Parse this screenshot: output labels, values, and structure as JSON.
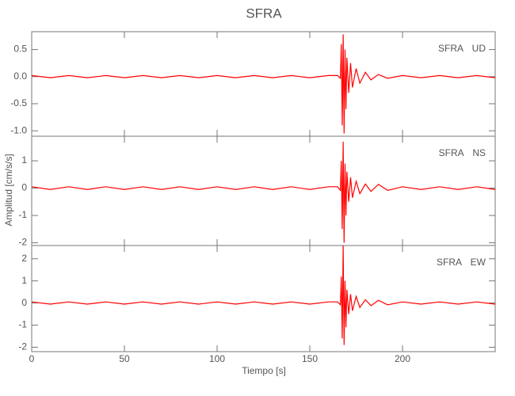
{
  "chart_data": [
    {
      "type": "line",
      "title": "SFRA",
      "annotation": "SFRA UD",
      "x": [
        0,
        10,
        20,
        30,
        40,
        50,
        60,
        70,
        80,
        90,
        100,
        110,
        120,
        130,
        140,
        150,
        160,
        165,
        166.5,
        167,
        167.5,
        168,
        168.5,
        169,
        169.5,
        170,
        171,
        172,
        173,
        175,
        177,
        180,
        183,
        187,
        192,
        200,
        210,
        220,
        230,
        240,
        250
      ],
      "series": [
        {
          "name": "UD",
          "color": "#ff0000",
          "values": [
            0.02,
            -0.02,
            0.02,
            -0.02,
            0.02,
            -0.02,
            0.02,
            -0.02,
            0.02,
            -0.02,
            0.02,
            -0.02,
            0.02,
            -0.02,
            0.02,
            -0.02,
            0.02,
            0.02,
            -0.03,
            0.6,
            -0.9,
            0.78,
            -1.05,
            0.5,
            -0.6,
            0.35,
            -0.3,
            0.25,
            -0.2,
            0.15,
            -0.12,
            0.08,
            -0.06,
            0.04,
            -0.03,
            0.02,
            -0.02,
            0.02,
            -0.02,
            0.02,
            -0.02
          ]
        }
      ],
      "xlim": [
        0,
        250
      ],
      "ylim": [
        -1.1,
        0.83
      ],
      "yticks": [
        0.5,
        {
          "value": 0,
          "label": "0.0"
        },
        -0.5,
        {
          "value": -1,
          "label": "-1.0"
        }
      ]
    },
    {
      "type": "line",
      "ylabel": "Amplitud [cm/s/s]",
      "annotation": "SFRA NS",
      "x": [
        0,
        10,
        20,
        30,
        40,
        50,
        60,
        70,
        80,
        90,
        100,
        110,
        120,
        130,
        140,
        150,
        160,
        165,
        166.5,
        167,
        167.5,
        168,
        168.5,
        169,
        169.5,
        170,
        171,
        172,
        173,
        175,
        177,
        180,
        183,
        187,
        192,
        200,
        210,
        220,
        230,
        240,
        250
      ],
      "series": [
        {
          "name": "NS",
          "color": "#ff0000",
          "values": [
            0.05,
            -0.05,
            0.05,
            -0.05,
            0.05,
            -0.05,
            0.05,
            -0.05,
            0.05,
            -0.05,
            0.05,
            -0.05,
            0.05,
            -0.05,
            0.05,
            -0.05,
            0.05,
            0.05,
            -0.08,
            1.0,
            -1.5,
            1.7,
            -2.0,
            0.9,
            -1.0,
            0.6,
            -0.5,
            0.4,
            -0.35,
            0.25,
            -0.2,
            0.15,
            -0.12,
            0.14,
            -0.08,
            0.05,
            -0.05,
            0.05,
            -0.05,
            0.05,
            -0.05
          ]
        }
      ],
      "xlim": [
        0,
        250
      ],
      "ylim": [
        -2.1,
        1.9
      ],
      "yticks": [
        1,
        0,
        -1,
        -2
      ]
    },
    {
      "type": "line",
      "xlabel": "Tiempo [s]",
      "annotation": "SFRA EW",
      "x": [
        0,
        10,
        20,
        30,
        40,
        50,
        60,
        70,
        80,
        90,
        100,
        110,
        120,
        130,
        140,
        150,
        160,
        165,
        166.5,
        167,
        167.5,
        168,
        168.5,
        169,
        169.5,
        170,
        171,
        172,
        173,
        175,
        177,
        180,
        183,
        187,
        192,
        200,
        210,
        220,
        230,
        240,
        250
      ],
      "series": [
        {
          "name": "EW",
          "color": "#ff0000",
          "values": [
            0.05,
            -0.05,
            0.05,
            -0.05,
            0.05,
            -0.05,
            0.05,
            -0.05,
            0.05,
            -0.05,
            0.05,
            -0.05,
            0.05,
            -0.05,
            0.05,
            -0.05,
            0.05,
            0.05,
            -0.08,
            1.2,
            -1.6,
            2.6,
            -1.9,
            1.0,
            -1.1,
            0.6,
            -0.5,
            0.4,
            -0.35,
            0.3,
            -0.2,
            0.15,
            -0.12,
            0.12,
            -0.08,
            0.05,
            -0.05,
            0.05,
            -0.05,
            0.05,
            -0.05
          ]
        }
      ],
      "xlim": [
        0,
        250
      ],
      "ylim": [
        -2.2,
        2.6
      ],
      "yticks": [
        2,
        1,
        0,
        -1,
        -2
      ],
      "xticks": [
        0,
        50,
        100,
        150,
        200
      ]
    }
  ]
}
